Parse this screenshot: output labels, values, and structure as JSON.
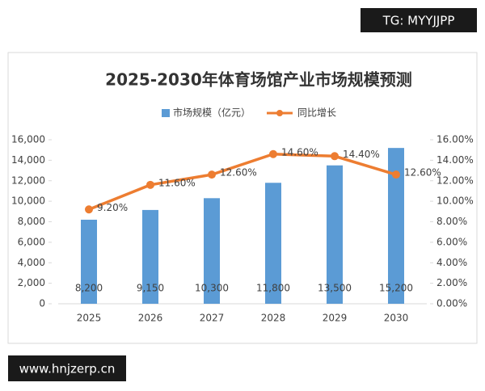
{
  "header_tag": "TG: MYYJJPP",
  "footer_url": "www.hnjzerp.cn",
  "chart_data": {
    "type": "bar-line",
    "title": "2025-2030年体育场馆产业市场规模预测",
    "categories": [
      "2025",
      "2026",
      "2027",
      "2028",
      "2029",
      "2030"
    ],
    "series": [
      {
        "name": "市场规模（亿元）",
        "type": "bar",
        "color": "#5b9bd5",
        "values": [
          8200,
          9150,
          10300,
          11800,
          13500,
          15200
        ],
        "value_labels": [
          "8,200",
          "9,150",
          "10,300",
          "11,800",
          "13,500",
          "15,200"
        ]
      },
      {
        "name": "同比增长",
        "type": "line",
        "axis": "y2",
        "color": "#ed7d31",
        "values": [
          9.2,
          11.6,
          12.6,
          14.6,
          14.4,
          12.6
        ],
        "value_labels": [
          "9.20%",
          "11.60%",
          "12.60%",
          "14.60%",
          "14.40%",
          "12.60%"
        ]
      }
    ],
    "ylim": [
      0,
      16000
    ],
    "yticks": [
      0,
      {
        "value": 2000,
        "label": "2,000"
      },
      {
        "value": 4000,
        "label": "4,000"
      },
      {
        "value": 6000,
        "label": "6,000"
      },
      {
        "value": 8000,
        "label": "8,000"
      },
      {
        "value": 10000,
        "label": "10,000"
      },
      {
        "value": 12000,
        "label": "12,000"
      },
      {
        "value": 14000,
        "label": "14,000"
      },
      {
        "value": 16000,
        "label": "16,000"
      }
    ],
    "y2lim": [
      0,
      16
    ],
    "y2ticks": [
      {
        "value": 0,
        "label": "0.00%"
      },
      {
        "value": 2,
        "label": "2.00%"
      },
      {
        "value": 4,
        "label": "4.00%"
      },
      {
        "value": 6,
        "label": "6.00%"
      },
      {
        "value": 8,
        "label": "8.00%"
      },
      {
        "value": 10,
        "label": "10.00%"
      },
      {
        "value": 12,
        "label": "12.00%"
      },
      {
        "value": 14,
        "label": "14.00%"
      },
      {
        "value": 16,
        "label": "16.00%"
      }
    ],
    "legend": "top"
  }
}
